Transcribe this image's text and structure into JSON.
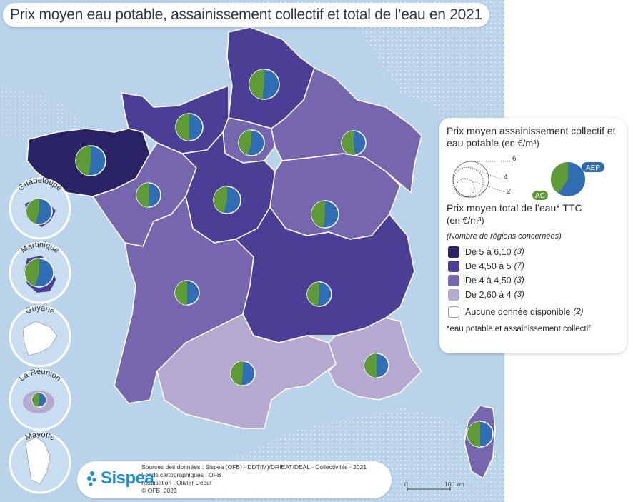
{
  "title": "Prix moyen eau potable, assainissement collectif et total de l’eau en 2021",
  "legend": {
    "size_title_1": "Prix moyen assainissement collectif et eau potable",
    "size_title_unit": "(en €/m³)",
    "size_values": [
      "6",
      "4",
      "2"
    ],
    "pie_label_aep": "AEP",
    "pie_label_ac": "AC",
    "total_title": "Prix moyen total de l’eau* TTC",
    "total_unit": "(en €/m³)",
    "note": "(Nombre de régions concernées)",
    "classes": [
      {
        "label": "De 5 à 6,10",
        "count": "(3)",
        "color": "#2a2466"
      },
      {
        "label": "De 4,50 à 5",
        "count": "(7)",
        "color": "#4a3f95"
      },
      {
        "label": "De 4 à 4,50",
        "count": "(3)",
        "color": "#7666ad"
      },
      {
        "label": "De 2,60 à 4",
        "count": "(3)",
        "color": "#b6a9d0"
      }
    ],
    "no_data_label": "Aucune donnée disponible",
    "no_data_count": "(2)",
    "footnote": "*eau potable et assainissement collectif"
  },
  "colors": {
    "sea": "#b9d3ea",
    "aep": "#2f6db5",
    "ac": "#5e9a35",
    "outline": "#ffffff"
  },
  "overseas": [
    {
      "name": "Guadeloupe"
    },
    {
      "name": "Martinique"
    },
    {
      "name": "Guyane"
    },
    {
      "name": "La Réunion"
    },
    {
      "name": "Mayotte"
    }
  ],
  "sources": {
    "line1": "Sources des données : Sispea (OFB) - DDT(M)/DRIEAT/DEAL - Collectivités - 2021",
    "line2": "Fonds cartographiques : OFB",
    "line3": "Réalisation : Olivier Debuf",
    "line4": "© OFB, 2023",
    "logo": "Sispea"
  },
  "scale": {
    "zero": "0",
    "end": "100 km"
  }
}
